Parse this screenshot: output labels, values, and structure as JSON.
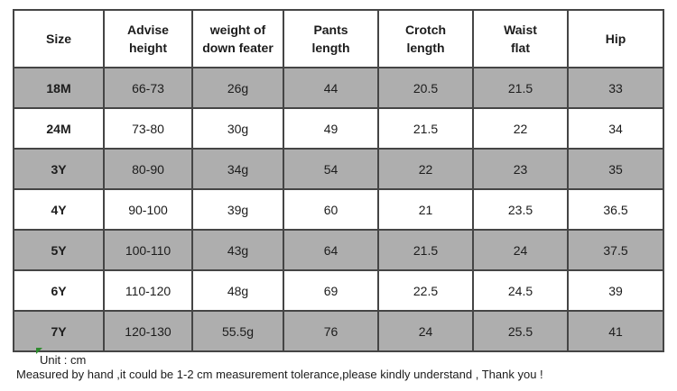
{
  "colors": {
    "shaded_row": "#aeaeae",
    "border": "#454545",
    "text": "#1c1c1c",
    "comment_marker_green": "#2e8b2e",
    "header_bg": "#ffffff"
  },
  "table": {
    "columns": [
      {
        "lines": [
          "Size"
        ]
      },
      {
        "lines": [
          "Advise",
          "height"
        ]
      },
      {
        "lines": [
          "weight of",
          "down feater"
        ]
      },
      {
        "lines": [
          "Pants",
          "length"
        ]
      },
      {
        "lines": [
          "Crotch",
          "length"
        ]
      },
      {
        "lines": [
          "Waist",
          "flat"
        ]
      },
      {
        "lines": [
          "Hip"
        ]
      }
    ],
    "rows": [
      {
        "size": "18M",
        "shaded": true,
        "values": [
          "66-73",
          "26g",
          "44",
          "20.5",
          "21.5",
          "33"
        ]
      },
      {
        "size": "24M",
        "shaded": false,
        "values": [
          "73-80",
          "30g",
          "49",
          "21.5",
          "22",
          "34"
        ]
      },
      {
        "size": "3Y",
        "shaded": true,
        "values": [
          "80-90",
          "34g",
          "54",
          "22",
          "23",
          "35"
        ]
      },
      {
        "size": "4Y",
        "shaded": false,
        "values": [
          "90-100",
          "39g",
          "60",
          "21",
          "23.5",
          "36.5"
        ]
      },
      {
        "size": "5Y",
        "shaded": true,
        "values": [
          "100-110",
          "43g",
          "64",
          "21.5",
          "24",
          "37.5"
        ]
      },
      {
        "size": "6Y",
        "shaded": false,
        "values": [
          "110-120",
          "48g",
          "69",
          "22.5",
          "24.5",
          "39"
        ]
      },
      {
        "size": "7Y",
        "shaded": true,
        "values": [
          "120-130",
          "55.5g",
          "76",
          "24",
          "25.5",
          "41"
        ]
      }
    ]
  },
  "footer": {
    "unit_label": "Unit : cm",
    "tolerance_note": "Measured by hand ,it could be 1-2 cm measurement tolerance,please kindly understand , Thank you !"
  }
}
